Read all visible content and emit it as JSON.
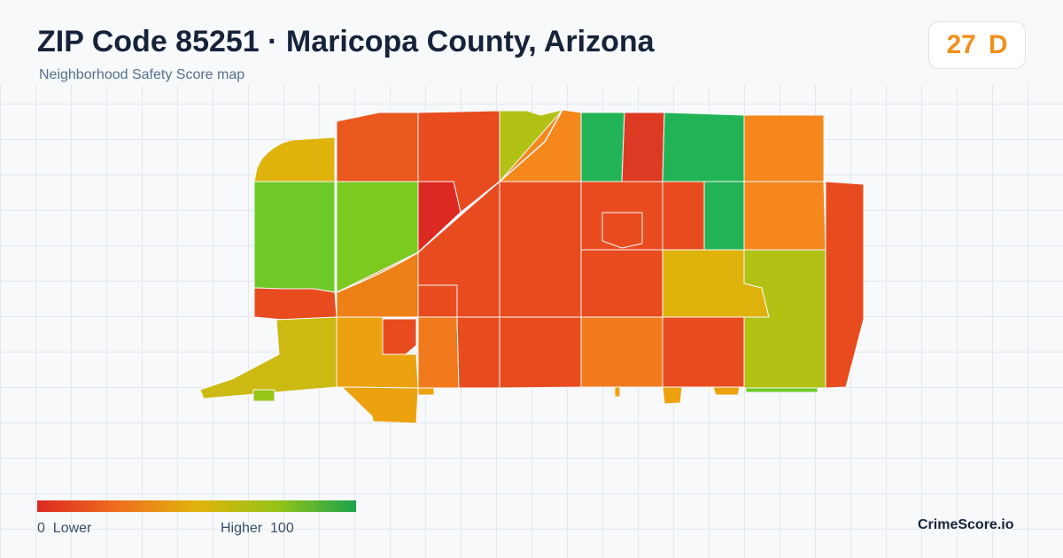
{
  "header": {
    "title": "ZIP Code 85251 · Maricopa County, Arizona",
    "subtitle": "Neighborhood Safety Score map"
  },
  "score": {
    "value": "27",
    "grade": "D",
    "color": "#f0901d"
  },
  "legend": {
    "low_value": "0",
    "low_label": "Lower",
    "high_label": "Higher",
    "high_value": "100",
    "gradient_colors": [
      "#dc2a22",
      "#ef6d1e",
      "#e0b30c",
      "#97c417",
      "#1aa34a"
    ]
  },
  "brand": "CrimeScore.io",
  "map": {
    "border_color": "#f7f9fb",
    "region_colors": {
      "red": "#dc2a22",
      "red_orange": "#e84b1e",
      "orange": "#ef6d1e",
      "light_orange": "#f5871d",
      "amber": "#eca20f",
      "yellow": "#e0b30c",
      "olive": "#b2c214",
      "yellow_green": "#97c417",
      "green": "#6ec927",
      "dark_green": "#22b356"
    }
  }
}
